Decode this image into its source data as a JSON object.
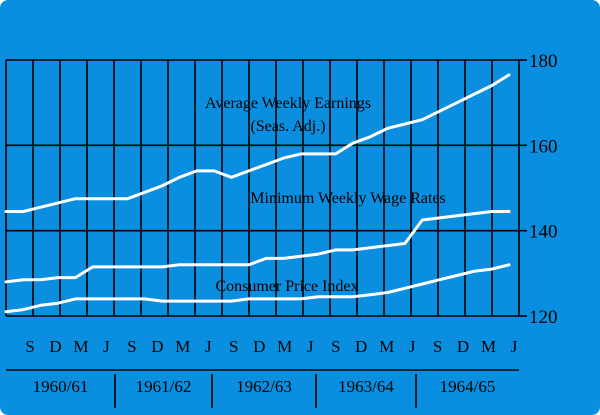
{
  "colors": {
    "background": "#0a8fe0",
    "lines": "#000000",
    "series": "#ffffff"
  },
  "chart_data": {
    "type": "line",
    "title": "",
    "xlabel": "",
    "ylabel": "",
    "ylim": [
      120,
      180
    ],
    "y_ticks": [
      120,
      140,
      160,
      180
    ],
    "grid": true,
    "month_ticks": [
      "S",
      "D",
      "M",
      "J",
      "S",
      "D",
      "M",
      "J",
      "S",
      "D",
      "M",
      "J",
      "S",
      "D",
      "M",
      "J",
      "S",
      "D",
      "M",
      "J"
    ],
    "year_groups": [
      "1960/61",
      "1961/62",
      "1962/63",
      "1963/64",
      "1964/65"
    ],
    "series": [
      {
        "name": "Average Weekly Earnings (Seas. Adj.)",
        "label_lines": [
          "Average Weekly Earnings",
          "(Seas. Adj.)"
        ],
        "values": [
          144.5,
          144.5,
          145.5,
          146.5,
          147.5,
          147.5,
          147.5,
          147.5,
          149,
          150.5,
          152.5,
          154,
          154,
          152.5,
          154,
          155.5,
          157,
          158,
          158,
          158,
          160.5,
          162,
          164,
          165,
          166,
          168,
          170,
          172,
          174,
          176.5
        ]
      },
      {
        "name": "Minimum Weekly Wage Rates",
        "label_lines": [
          "Minimum Weekly Wage Rates"
        ],
        "values": [
          128,
          128.5,
          128.5,
          129,
          129,
          131.5,
          131.5,
          131.5,
          131.5,
          131.5,
          132,
          132,
          132,
          132,
          132,
          133.5,
          133.5,
          134,
          134.5,
          135.5,
          135.5,
          136,
          136.5,
          137,
          142.5,
          143,
          143.5,
          144,
          144.5,
          144.5
        ]
      },
      {
        "name": "Consumer Price Index",
        "label_lines": [
          "Consumer Price Index"
        ],
        "values": [
          121,
          121.5,
          122.5,
          123,
          124,
          124,
          124,
          124,
          124,
          123.5,
          123.5,
          123.5,
          123.5,
          123.5,
          124,
          124,
          124,
          124,
          124.5,
          124.5,
          124.5,
          125,
          125.5,
          126.5,
          127.5,
          128.5,
          129.5,
          130.5,
          131,
          132
        ]
      }
    ]
  }
}
